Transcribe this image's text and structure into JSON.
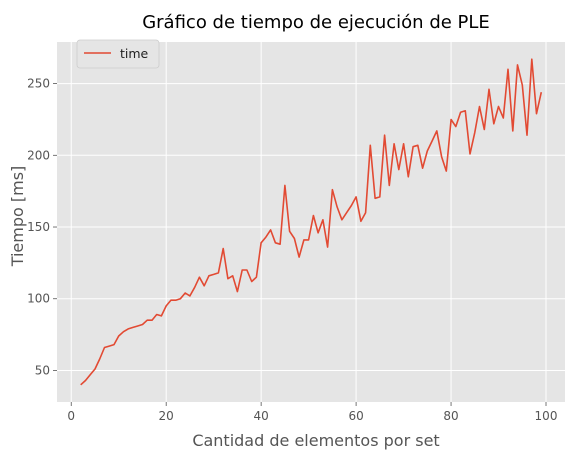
{
  "chart_data": {
    "type": "line",
    "title": "Gráfico de tiempo de ejecución de PLE",
    "xlabel": "Cantidad de elementos por set",
    "ylabel": "Tiempo [ms]",
    "xlim": [
      -3,
      104
    ],
    "ylim": [
      28,
      279
    ],
    "xticks": [
      0,
      20,
      40,
      60,
      80,
      100
    ],
    "yticks": [
      50,
      100,
      150,
      200,
      250
    ],
    "grid": true,
    "legend": {
      "position": "top-left"
    },
    "series": [
      {
        "name": "time",
        "color": "#E24A33",
        "x": [
          2,
          3,
          4,
          5,
          6,
          7,
          8,
          9,
          10,
          11,
          12,
          13,
          14,
          15,
          16,
          17,
          18,
          19,
          20,
          21,
          22,
          23,
          24,
          25,
          26,
          27,
          28,
          29,
          30,
          31,
          32,
          33,
          34,
          35,
          36,
          37,
          38,
          39,
          40,
          41,
          42,
          43,
          44,
          45,
          46,
          47,
          48,
          49,
          50,
          51,
          52,
          53,
          54,
          55,
          56,
          57,
          58,
          59,
          60,
          61,
          62,
          63,
          64,
          65,
          66,
          67,
          68,
          69,
          70,
          71,
          72,
          73,
          74,
          75,
          76,
          77,
          78,
          79,
          80,
          81,
          82,
          83,
          84,
          85,
          86,
          87,
          88,
          89,
          90,
          91,
          92,
          93,
          94,
          95,
          96,
          97,
          98,
          99
        ],
        "y": [
          40,
          43,
          47,
          51,
          58,
          66,
          67,
          68,
          74,
          77,
          79,
          80,
          81,
          82,
          85,
          85,
          89,
          88,
          95,
          99,
          99,
          100,
          104,
          102,
          108,
          115,
          109,
          116,
          117,
          118,
          135,
          114,
          116,
          105,
          120,
          120,
          112,
          115,
          139,
          143,
          148,
          139,
          138,
          179,
          147,
          142,
          129,
          141,
          141,
          158,
          146,
          155,
          136,
          176,
          164,
          155,
          160,
          165,
          171,
          154,
          160,
          207,
          170,
          171,
          214,
          179,
          208,
          190,
          208,
          185,
          206,
          207,
          191,
          203,
          210,
          217,
          199,
          189,
          225,
          220,
          230,
          231,
          201,
          216,
          234,
          218,
          246,
          222,
          234,
          226,
          260,
          217,
          263,
          249,
          214,
          267,
          229,
          244
        ]
      }
    ]
  }
}
